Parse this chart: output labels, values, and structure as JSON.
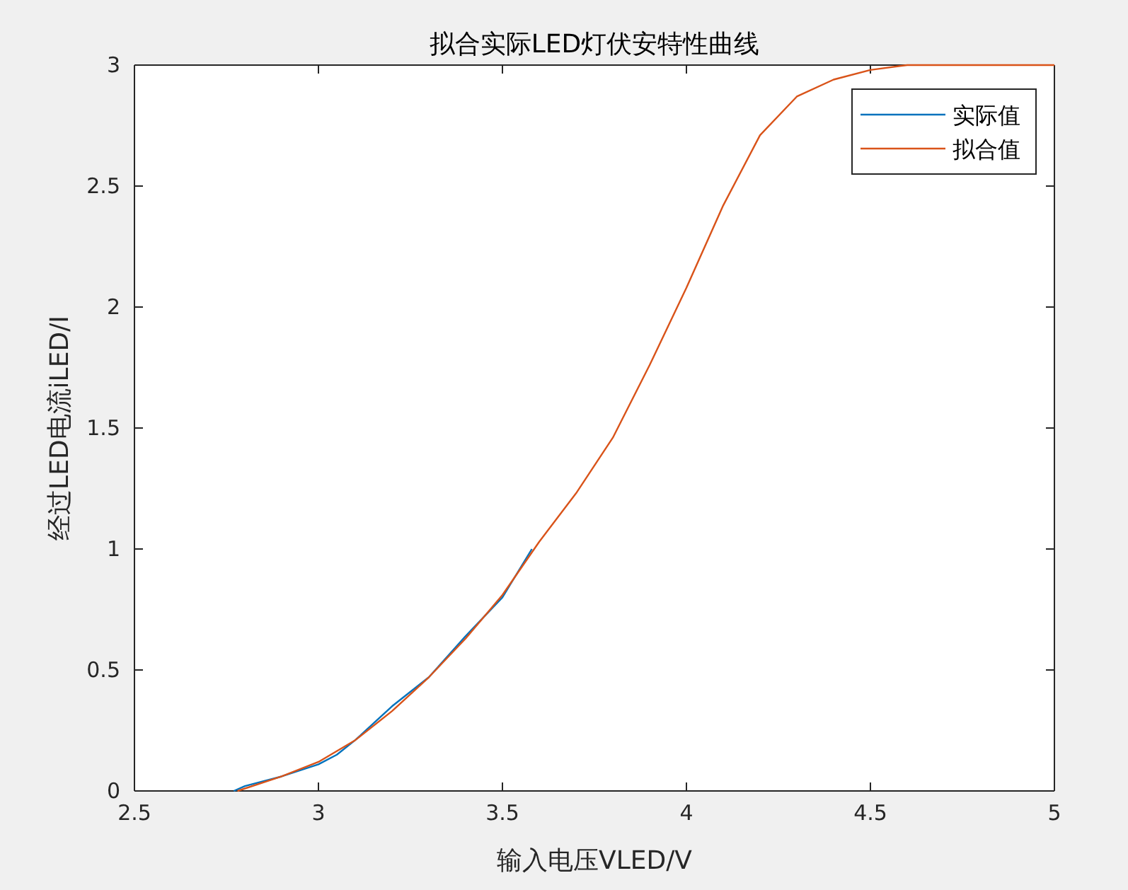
{
  "chart_data": {
    "type": "line",
    "title": "拟合实际LED灯伏安特性曲线",
    "xlabel": "输入电压VLED/V",
    "ylabel": "经过LED电流iLED/I",
    "xlim": [
      2.5,
      5
    ],
    "xticks": [
      2.5,
      3,
      3.5,
      4,
      4.5,
      5
    ],
    "ylim": [
      0,
      3
    ],
    "yticks": [
      0,
      0.5,
      1,
      1.5,
      2,
      2.5,
      3
    ],
    "grid": false,
    "legend": "top right",
    "line_style": "solid",
    "marker": "none",
    "series": [
      {
        "name": "实际值",
        "color": "#0072bd",
        "x": [
          2.77,
          2.8,
          2.9,
          3.0,
          3.05,
          3.1,
          3.2,
          3.3,
          3.4,
          3.5,
          3.58
        ],
        "values": [
          0,
          0.02,
          0.06,
          0.11,
          0.15,
          0.21,
          0.35,
          0.47,
          0.64,
          0.8,
          1.0
        ]
      },
      {
        "name": "拟合值",
        "color": "#d95319",
        "x": [
          2.78,
          2.9,
          3.0,
          3.1,
          3.2,
          3.3,
          3.4,
          3.5,
          3.6,
          3.7,
          3.8,
          3.9,
          4.0,
          4.1,
          4.2,
          4.3,
          4.4,
          4.5,
          4.6,
          4.8,
          5.0
        ],
        "values": [
          0,
          0.06,
          0.12,
          0.21,
          0.33,
          0.47,
          0.63,
          0.81,
          1.03,
          1.23,
          1.46,
          1.76,
          2.08,
          2.42,
          2.71,
          2.87,
          2.94,
          2.98,
          3.0,
          3.0,
          3.0
        ]
      }
    ]
  }
}
